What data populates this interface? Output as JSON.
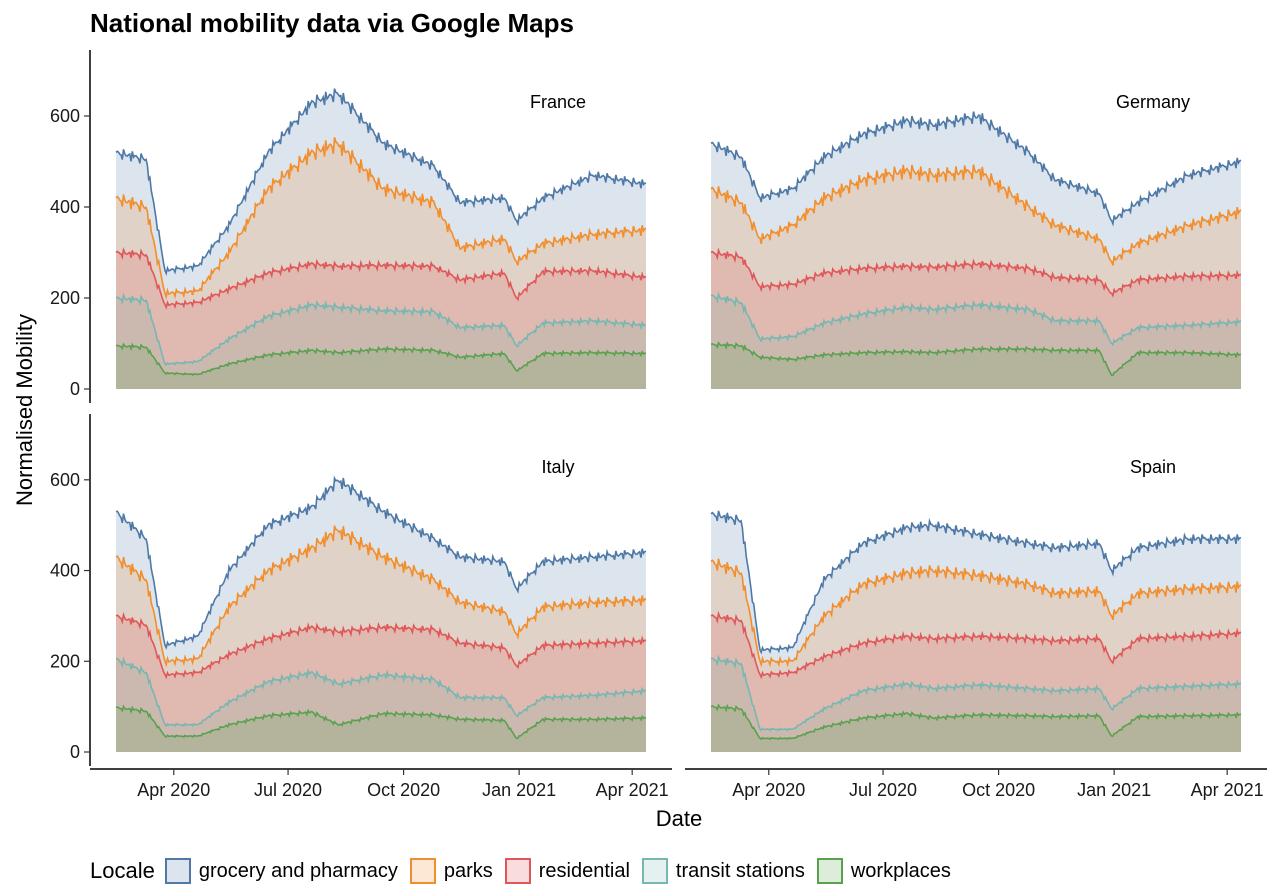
{
  "chart_data": {
    "type": "area",
    "title": "National mobility data via Google Maps",
    "xlabel": "Date",
    "ylabel": "Normalised Mobility",
    "ylim": [
      0,
      730
    ],
    "y_ticks": [
      0,
      200,
      400,
      600
    ],
    "x_ticks": [
      {
        "date": "2020-04-01",
        "label": "Apr 2020"
      },
      {
        "date": "2020-07-01",
        "label": "Jul 2020"
      },
      {
        "date": "2020-10-01",
        "label": "Oct 2020"
      },
      {
        "date": "2021-01-01",
        "label": "Jan 2021"
      },
      {
        "date": "2021-04-01",
        "label": "Apr 2021"
      }
    ],
    "date_range": [
      "2020-02-15",
      "2021-04-12"
    ],
    "legend": {
      "title": "Locale",
      "position": "bottom",
      "entries": [
        {
          "name": "grocery and pharmacy",
          "color": "#4e79a7"
        },
        {
          "name": "parks",
          "color": "#f28e2b"
        },
        {
          "name": "residential",
          "color": "#e15759"
        },
        {
          "name": "transit stations",
          "color": "#76b7b2"
        },
        {
          "name": "workplaces",
          "color": "#59a14f"
        }
      ]
    },
    "stacking": "cumulative; each line shows the cumulative total of its locale and all locales below it",
    "panels": [
      {
        "name": "France",
        "series": [
          {
            "name": "workplaces",
            "x": [
              "2020-02-15",
              "2020-03-10",
              "2020-03-25",
              "2020-04-20",
              "2020-05-15",
              "2020-06-15",
              "2020-07-20",
              "2020-08-10",
              "2020-09-15",
              "2020-10-25",
              "2020-11-15",
              "2020-12-20",
              "2020-12-30",
              "2021-01-20",
              "2021-03-01",
              "2021-04-12"
            ],
            "y": [
              95,
              92,
              35,
              32,
              55,
              75,
              85,
              80,
              88,
              85,
              70,
              78,
              40,
              78,
              80,
              78
            ]
          },
          {
            "name": "transit stations",
            "x": [
              "2020-02-15",
              "2020-03-10",
              "2020-03-25",
              "2020-04-20",
              "2020-05-15",
              "2020-06-15",
              "2020-07-20",
              "2020-08-10",
              "2020-09-15",
              "2020-10-25",
              "2020-11-15",
              "2020-12-20",
              "2020-12-30",
              "2021-01-20",
              "2021-03-01",
              "2021-04-12"
            ],
            "y": [
              200,
              195,
              55,
              60,
              110,
              160,
              185,
              180,
              172,
              170,
              135,
              140,
              95,
              145,
              150,
              140
            ]
          },
          {
            "name": "residential",
            "x": [
              "2020-02-15",
              "2020-03-10",
              "2020-03-25",
              "2020-04-20",
              "2020-05-15",
              "2020-06-15",
              "2020-07-20",
              "2020-08-10",
              "2020-09-15",
              "2020-10-25",
              "2020-11-15",
              "2020-12-20",
              "2020-12-30",
              "2021-01-20",
              "2021-03-01",
              "2021-04-12"
            ],
            "y": [
              300,
              295,
              185,
              190,
              220,
              255,
              275,
              270,
              272,
              270,
              240,
              255,
              200,
              258,
              260,
              245
            ]
          },
          {
            "name": "parks",
            "x": [
              "2020-02-15",
              "2020-03-10",
              "2020-03-25",
              "2020-04-20",
              "2020-05-15",
              "2020-06-15",
              "2020-07-20",
              "2020-08-10",
              "2020-09-15",
              "2020-10-25",
              "2020-11-15",
              "2020-12-20",
              "2020-12-30",
              "2021-01-20",
              "2021-03-01",
              "2021-04-12"
            ],
            "y": [
              420,
              400,
              210,
              215,
              300,
              440,
              520,
              540,
              440,
              410,
              310,
              330,
              280,
              320,
              340,
              350
            ]
          },
          {
            "name": "grocery and pharmacy",
            "x": [
              "2020-02-15",
              "2020-03-10",
              "2020-03-25",
              "2020-04-20",
              "2020-05-15",
              "2020-06-15",
              "2020-07-20",
              "2020-08-10",
              "2020-09-15",
              "2020-10-25",
              "2020-11-15",
              "2020-12-20",
              "2020-12-30",
              "2021-01-20",
              "2021-03-01",
              "2021-04-12"
            ],
            "y": [
              520,
              505,
              260,
              270,
              360,
              520,
              630,
              650,
              540,
              490,
              410,
              420,
              370,
              420,
              470,
              450
            ]
          }
        ]
      },
      {
        "name": "Germany",
        "series": [
          {
            "name": "workplaces",
            "x": [
              "2020-02-15",
              "2020-03-10",
              "2020-03-25",
              "2020-04-20",
              "2020-05-15",
              "2020-06-15",
              "2020-07-20",
              "2020-08-10",
              "2020-09-15",
              "2020-10-25",
              "2020-11-15",
              "2020-12-20",
              "2020-12-30",
              "2021-01-20",
              "2021-03-01",
              "2021-04-12"
            ],
            "y": [
              98,
              95,
              70,
              65,
              75,
              80,
              82,
              80,
              88,
              88,
              85,
              85,
              30,
              80,
              80,
              75
            ]
          },
          {
            "name": "transit stations",
            "x": [
              "2020-02-15",
              "2020-03-10",
              "2020-03-25",
              "2020-04-20",
              "2020-05-15",
              "2020-06-15",
              "2020-07-20",
              "2020-08-10",
              "2020-09-15",
              "2020-10-25",
              "2020-11-15",
              "2020-12-20",
              "2020-12-30",
              "2021-01-20",
              "2021-03-01",
              "2021-04-12"
            ],
            "y": [
              205,
              190,
              110,
              115,
              145,
              165,
              180,
              175,
              185,
              175,
              150,
              150,
              100,
              135,
              140,
              148
            ]
          },
          {
            "name": "residential",
            "x": [
              "2020-02-15",
              "2020-03-10",
              "2020-03-25",
              "2020-04-20",
              "2020-05-15",
              "2020-06-15",
              "2020-07-20",
              "2020-08-10",
              "2020-09-15",
              "2020-10-25",
              "2020-11-15",
              "2020-12-20",
              "2020-12-30",
              "2021-01-20",
              "2021-03-01",
              "2021-04-12"
            ],
            "y": [
              300,
              290,
              225,
              230,
              255,
              265,
              270,
              268,
              275,
              265,
              245,
              240,
              210,
              240,
              248,
              250
            ]
          },
          {
            "name": "parks",
            "x": [
              "2020-02-15",
              "2020-03-10",
              "2020-03-25",
              "2020-04-20",
              "2020-05-15",
              "2020-06-15",
              "2020-07-20",
              "2020-08-10",
              "2020-09-15",
              "2020-10-25",
              "2020-11-15",
              "2020-12-20",
              "2020-12-30",
              "2021-01-20",
              "2021-03-01",
              "2021-04-12"
            ],
            "y": [
              440,
              410,
              330,
              360,
              420,
              460,
              480,
              470,
              480,
              400,
              360,
              330,
              280,
              320,
              360,
              390
            ]
          },
          {
            "name": "grocery and pharmacy",
            "x": [
              "2020-02-15",
              "2020-03-10",
              "2020-03-25",
              "2020-04-20",
              "2020-05-15",
              "2020-06-15",
              "2020-07-20",
              "2020-08-10",
              "2020-09-15",
              "2020-10-25",
              "2020-11-15",
              "2020-12-20",
              "2020-12-30",
              "2021-01-20",
              "2021-03-01",
              "2021-04-12"
            ],
            "y": [
              540,
              510,
              420,
              440,
              510,
              560,
              590,
              580,
              600,
              520,
              460,
              430,
              370,
              410,
              470,
              500
            ]
          }
        ]
      },
      {
        "name": "Italy",
        "series": [
          {
            "name": "workplaces",
            "x": [
              "2020-02-15",
              "2020-03-10",
              "2020-03-25",
              "2020-04-20",
              "2020-05-15",
              "2020-06-15",
              "2020-07-20",
              "2020-08-10",
              "2020-09-15",
              "2020-10-25",
              "2020-11-15",
              "2020-12-20",
              "2020-12-30",
              "2021-01-20",
              "2021-03-01",
              "2021-04-12"
            ],
            "y": [
              98,
              90,
              35,
              35,
              60,
              80,
              88,
              60,
              85,
              82,
              72,
              70,
              30,
              72,
              72,
              75
            ]
          },
          {
            "name": "transit stations",
            "x": [
              "2020-02-15",
              "2020-03-10",
              "2020-03-25",
              "2020-04-20",
              "2020-05-15",
              "2020-06-15",
              "2020-07-20",
              "2020-08-10",
              "2020-09-15",
              "2020-10-25",
              "2020-11-15",
              "2020-12-20",
              "2020-12-30",
              "2021-01-20",
              "2021-03-01",
              "2021-04-12"
            ],
            "y": [
              205,
              175,
              60,
              60,
              110,
              155,
              175,
              150,
              170,
              160,
              120,
              120,
              80,
              120,
              125,
              135
            ]
          },
          {
            "name": "residential",
            "x": [
              "2020-02-15",
              "2020-03-10",
              "2020-03-25",
              "2020-04-20",
              "2020-05-15",
              "2020-06-15",
              "2020-07-20",
              "2020-08-10",
              "2020-09-15",
              "2020-10-25",
              "2020-11-15",
              "2020-12-20",
              "2020-12-30",
              "2021-01-20",
              "2021-03-01",
              "2021-04-12"
            ],
            "y": [
              300,
              280,
              170,
              175,
              215,
              250,
              275,
              265,
              275,
              270,
              240,
              230,
              190,
              235,
              240,
              245
            ]
          },
          {
            "name": "parks",
            "x": [
              "2020-02-15",
              "2020-03-10",
              "2020-03-25",
              "2020-04-20",
              "2020-05-15",
              "2020-06-15",
              "2020-07-20",
              "2020-08-10",
              "2020-09-15",
              "2020-10-25",
              "2020-11-15",
              "2020-12-20",
              "2020-12-30",
              "2021-01-20",
              "2021-03-01",
              "2021-04-12"
            ],
            "y": [
              430,
              380,
              200,
              205,
              320,
              400,
              450,
              490,
              430,
              380,
              330,
              310,
              260,
              320,
              330,
              335
            ]
          },
          {
            "name": "grocery and pharmacy",
            "x": [
              "2020-02-15",
              "2020-03-10",
              "2020-03-25",
              "2020-04-20",
              "2020-05-15",
              "2020-06-15",
              "2020-07-20",
              "2020-08-10",
              "2020-09-15",
              "2020-10-25",
              "2020-11-15",
              "2020-12-20",
              "2020-12-30",
              "2021-01-20",
              "2021-03-01",
              "2021-04-12"
            ],
            "y": [
              530,
              470,
              235,
              255,
              400,
              500,
              540,
              600,
              530,
              470,
              430,
              420,
              360,
              420,
              430,
              440
            ]
          }
        ]
      },
      {
        "name": "Spain",
        "series": [
          {
            "name": "workplaces",
            "x": [
              "2020-02-15",
              "2020-03-10",
              "2020-03-25",
              "2020-04-20",
              "2020-05-15",
              "2020-06-15",
              "2020-07-20",
              "2020-08-10",
              "2020-09-15",
              "2020-10-25",
              "2020-11-15",
              "2020-12-20",
              "2020-12-30",
              "2021-01-20",
              "2021-03-01",
              "2021-04-12"
            ],
            "y": [
              100,
              95,
              30,
              30,
              55,
              75,
              85,
              75,
              82,
              80,
              78,
              80,
              35,
              78,
              80,
              82
            ]
          },
          {
            "name": "transit stations",
            "x": [
              "2020-02-15",
              "2020-03-10",
              "2020-03-25",
              "2020-04-20",
              "2020-05-15",
              "2020-06-15",
              "2020-07-20",
              "2020-08-10",
              "2020-09-15",
              "2020-10-25",
              "2020-11-15",
              "2020-12-20",
              "2020-12-30",
              "2021-01-20",
              "2021-03-01",
              "2021-04-12"
            ],
            "y": [
              205,
              195,
              50,
              50,
              95,
              135,
              150,
              140,
              148,
              140,
              135,
              140,
              95,
              140,
              145,
              150
            ]
          },
          {
            "name": "residential",
            "x": [
              "2020-02-15",
              "2020-03-10",
              "2020-03-25",
              "2020-04-20",
              "2020-05-15",
              "2020-06-15",
              "2020-07-20",
              "2020-08-10",
              "2020-09-15",
              "2020-10-25",
              "2020-11-15",
              "2020-12-20",
              "2020-12-30",
              "2021-01-20",
              "2021-03-01",
              "2021-04-12"
            ],
            "y": [
              300,
              290,
              170,
              175,
              210,
              240,
              255,
              250,
              255,
              250,
              245,
              250,
              200,
              250,
              255,
              262
            ]
          },
          {
            "name": "parks",
            "x": [
              "2020-02-15",
              "2020-03-10",
              "2020-03-25",
              "2020-04-20",
              "2020-05-15",
              "2020-06-15",
              "2020-07-20",
              "2020-08-10",
              "2020-09-15",
              "2020-10-25",
              "2020-11-15",
              "2020-12-20",
              "2020-12-30",
              "2021-01-20",
              "2021-03-01",
              "2021-04-12"
            ],
            "y": [
              420,
              395,
              200,
              200,
              300,
              370,
              395,
              400,
              390,
              370,
              350,
              355,
              300,
              350,
              360,
              365
            ]
          },
          {
            "name": "grocery and pharmacy",
            "x": [
              "2020-02-15",
              "2020-03-10",
              "2020-03-25",
              "2020-04-20",
              "2020-05-15",
              "2020-06-15",
              "2020-07-20",
              "2020-08-10",
              "2020-09-15",
              "2020-10-25",
              "2020-11-15",
              "2020-12-20",
              "2020-12-30",
              "2021-01-20",
              "2021-03-01",
              "2021-04-12"
            ],
            "y": [
              525,
              510,
              225,
              230,
              380,
              460,
              495,
              500,
              480,
              460,
              450,
              460,
              400,
              450,
              470,
              470
            ]
          }
        ]
      }
    ]
  }
}
